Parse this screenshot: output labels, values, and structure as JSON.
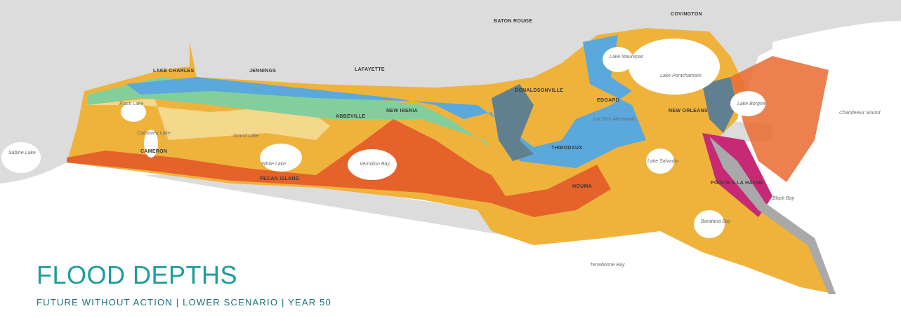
{
  "header": {
    "title": "FLOOD DEPTHS",
    "subtitle": "FUTURE WITHOUT ACTION | LOWER SCENARIO | YEAR 50"
  },
  "cities": [
    "COVINGTON",
    "BATON ROUGE",
    "LAKE CHARLES",
    "JENNINGS",
    "LAFAYETTE",
    "DONALDSONVILLE",
    "NEW IBERIA",
    "ABBEVILLE",
    "EDGARD",
    "NEW ORLEANS",
    "THIBODAUX",
    "HOUMA",
    "POINTE A LA HACHE",
    "CAMERON",
    "PECAN ISLAND"
  ],
  "water_bodies": [
    "Lake Maurepas",
    "Lake Pontchartrain",
    "Lake Borgne",
    "Chandeleur Sound",
    "Black Lake",
    "Sabine Lake",
    "Calcasieu Lake",
    "Grand Lake",
    "White Lake",
    "Vermilion Bay",
    "Lac Des Allemands",
    "Lake Salvador",
    "Barataria Bay",
    "Terrebonne Bay",
    "Black Bay"
  ]
}
